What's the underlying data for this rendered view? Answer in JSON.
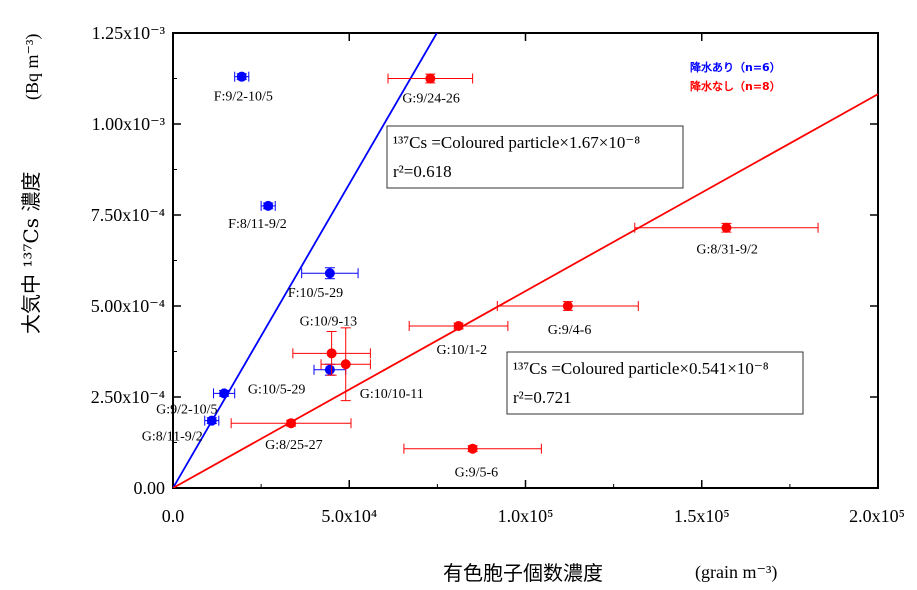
{
  "chart_data": {
    "type": "scatter",
    "xlabel": "有色胞子個数濃度",
    "xlabel_unit": "(grain m⁻³)",
    "ylabel": "大気中 ¹³⁷Cs 濃度",
    "ylabel_unit": "(Bq m⁻³)",
    "xlim": [
      0,
      200000
    ],
    "ylim": [
      0,
      0.00125
    ],
    "x_ticks": [
      {
        "value": 0,
        "label": "0.0"
      },
      {
        "value": 50000,
        "label": "5.0x10⁴"
      },
      {
        "value": 100000,
        "label": "1.0x10⁵"
      },
      {
        "value": 150000,
        "label": "1.5x10⁵"
      },
      {
        "value": 200000,
        "label": "2.0x10⁵"
      }
    ],
    "y_ticks": [
      {
        "value": 0,
        "label": "0.00"
      },
      {
        "value": 0.00025,
        "label": "2.50x10⁻⁴"
      },
      {
        "value": 0.0005,
        "label": "5.00x10⁻⁴"
      },
      {
        "value": 0.00075,
        "label": "7.50x10⁻⁴"
      },
      {
        "value": 0.001,
        "label": "1.00x10⁻³"
      },
      {
        "value": 0.00125,
        "label": "1.25x10⁻³"
      }
    ],
    "series": [
      {
        "name": "降水あり（n=6）",
        "color": "#0000ff",
        "points": [
          {
            "x": 19500,
            "y": 0.00113,
            "xerr": 2000,
            "yerr": 8e-06,
            "label": "F:9/2-10/5"
          },
          {
            "x": 27000,
            "y": 0.000775,
            "xerr": 2000,
            "yerr": 8e-06,
            "label": "F:8/11-9/2"
          },
          {
            "x": 44500,
            "y": 0.00059,
            "xerr": 8000,
            "yerr": 1.5e-05,
            "label": "F:10/5-29"
          },
          {
            "x": 44500,
            "y": 0.000325,
            "xerr": 4500,
            "yerr": 1.5e-05,
            "label": "G:10/5-29"
          },
          {
            "x": 14500,
            "y": 0.00026,
            "xerr": 3000,
            "yerr": 8e-06,
            "label": "G:9/2-10/5"
          },
          {
            "x": 11000,
            "y": 0.000185,
            "xerr": 2000,
            "yerr": 8e-06,
            "label": "G:8/11-9/2"
          }
        ],
        "fit_slope": 1.67e-08,
        "equation": "¹³⁷Cs =Coloured particle×1.67×10⁻⁸",
        "r2": "r²=0.618"
      },
      {
        "name": "降水なし（n=8）",
        "color": "#ff0000",
        "points": [
          {
            "x": 73000,
            "y": 0.001125,
            "xerr": 12000,
            "yerr": 1.2e-05,
            "label": "G:9/24-26"
          },
          {
            "x": 157000,
            "y": 0.000715,
            "xerr": 26000,
            "yerr": 1.2e-05,
            "label": "G:8/31-9/2"
          },
          {
            "x": 112000,
            "y": 0.0005,
            "xerr": 20000,
            "yerr": 1.2e-05,
            "label": "G:9/4-6"
          },
          {
            "x": 81000,
            "y": 0.000445,
            "xerr": 14000,
            "yerr": 8e-06,
            "label": "G:10/1-2"
          },
          {
            "x": 45000,
            "y": 0.00037,
            "xerr": 11000,
            "yerr": 6e-05,
            "label": "G:10/9-13"
          },
          {
            "x": 49000,
            "y": 0.00034,
            "xerr": 7000,
            "yerr": 0.0001,
            "label": "G:10/10-11"
          },
          {
            "x": 33500,
            "y": 0.000178,
            "xerr": 17000,
            "yerr": 8e-06,
            "label": "G:8/25-27"
          },
          {
            "x": 85000,
            "y": 0.000108,
            "xerr": 19500,
            "yerr": 8e-06,
            "label": "G:9/5-6"
          }
        ],
        "fit_slope": 5.41e-09,
        "equation": "¹³⁷Cs =Coloured particle×0.541×10⁻⁸",
        "r2": "r²=0.721"
      }
    ],
    "legend_position": "top-right",
    "grid": false
  }
}
